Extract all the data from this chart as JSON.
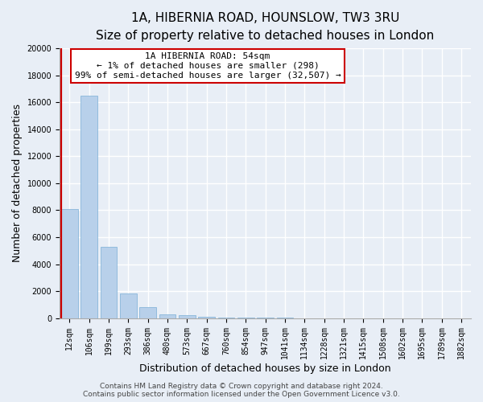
{
  "title": "1A, HIBERNIA ROAD, HOUNSLOW, TW3 3RU",
  "subtitle": "Size of property relative to detached houses in London",
  "bar_labels": [
    "12sqm",
    "106sqm",
    "199sqm",
    "293sqm",
    "386sqm",
    "480sqm",
    "573sqm",
    "667sqm",
    "760sqm",
    "854sqm",
    "947sqm",
    "1041sqm",
    "1134sqm",
    "1228sqm",
    "1321sqm",
    "1415sqm",
    "1508sqm",
    "1602sqm",
    "1695sqm",
    "1789sqm",
    "1882sqm"
  ],
  "bar_values": [
    8100,
    16500,
    5300,
    1800,
    800,
    280,
    200,
    120,
    60,
    30,
    15,
    8,
    5,
    3,
    2,
    1,
    1,
    0,
    0,
    0,
    0
  ],
  "bar_color": "#b8d0ea",
  "bar_edge_color": "#7aaed6",
  "highlight_x_color": "#cc0000",
  "xlabel": "Distribution of detached houses by size in London",
  "ylabel": "Number of detached properties",
  "ylim": [
    0,
    20000
  ],
  "yticks": [
    0,
    2000,
    4000,
    6000,
    8000,
    10000,
    12000,
    14000,
    16000,
    18000,
    20000
  ],
  "annotation_line1": "1A HIBERNIA ROAD: 54sqm",
  "annotation_line2": "← 1% of detached houses are smaller (298)",
  "annotation_line3": "99% of semi-detached houses are larger (32,507) →",
  "annotation_box_edge": "#cc0000",
  "footer_line1": "Contains HM Land Registry data © Crown copyright and database right 2024.",
  "footer_line2": "Contains public sector information licensed under the Open Government Licence v3.0.",
  "background_color": "#e8eef6",
  "plot_bg_color": "#e8eef6",
  "grid_color": "#ffffff",
  "title_fontsize": 11,
  "subtitle_fontsize": 9.5,
  "axis_label_fontsize": 9,
  "tick_fontsize": 7,
  "annotation_fontsize": 8,
  "footer_fontsize": 6.5
}
